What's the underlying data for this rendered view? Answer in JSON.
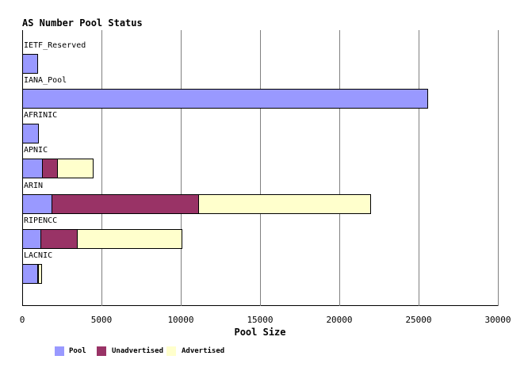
{
  "title": "AS Number Pool Status",
  "xlabel": "Pool Size",
  "colors": {
    "pool": "#9999ff",
    "unadvertised": "#993366",
    "advertised": "#ffffcc",
    "gridline": "#808080",
    "axis": "#000000",
    "bar_border": "#000000",
    "background": "#ffffff",
    "text": "#000000"
  },
  "legend": [
    {
      "label": "Pool",
      "color": "#9999ff"
    },
    {
      "label": "Unadvertised",
      "color": "#993366"
    },
    {
      "label": "Advertised",
      "color": "#ffffcc"
    }
  ],
  "chart_data": {
    "type": "bar",
    "orientation": "horizontal",
    "stacked": true,
    "title": "AS Number Pool Status",
    "xlabel": "Pool Size",
    "ylabel": "",
    "xlim": [
      0,
      30000
    ],
    "xticks": [
      0,
      5000,
      10000,
      15000,
      20000,
      25000,
      30000
    ],
    "grid": true,
    "legend_position": "bottom",
    "categories": [
      "IETF_Reserved",
      "IANA_Pool",
      "AFRINIC",
      "APNIC",
      "ARIN",
      "RIPENCC",
      "LACNIC"
    ],
    "series": [
      {
        "name": "Pool",
        "color": "#9999ff",
        "values": [
          1000,
          25600,
          1050,
          1300,
          1900,
          1200,
          1000
        ]
      },
      {
        "name": "Unadvertised",
        "color": "#993366",
        "values": [
          0,
          0,
          0,
          1000,
          9300,
          2350,
          50
        ]
      },
      {
        "name": "Advertised",
        "color": "#ffffcc",
        "values": [
          0,
          0,
          0,
          2300,
          10900,
          6650,
          250
        ]
      }
    ],
    "totals": [
      1000,
      25600,
      1050,
      4600,
      22100,
      10200,
      1300
    ]
  }
}
